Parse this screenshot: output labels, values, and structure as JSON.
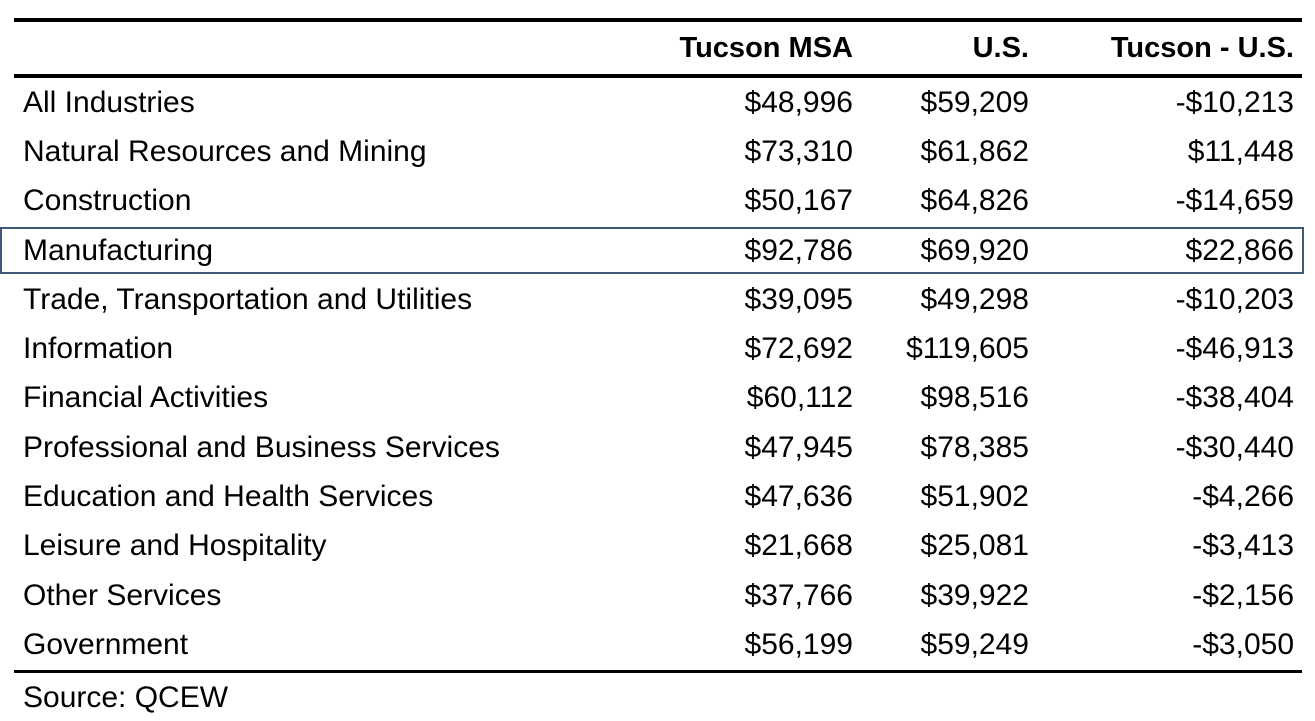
{
  "table": {
    "headers": {
      "label": "",
      "tucson": "Tucson MSA",
      "us": "U.S.",
      "diff": "Tucson - U.S."
    },
    "highlight_color": "#3d5a7a",
    "highlighted_row": "Manufacturing",
    "rows": [
      {
        "label": "All Industries",
        "tucson": "$48,996",
        "us": "$59,209",
        "diff": "-$10,213"
      },
      {
        "label": "Natural Resources and Mining",
        "tucson": "$73,310",
        "us": "$61,862",
        "diff": "$11,448"
      },
      {
        "label": "Construction",
        "tucson": "$50,167",
        "us": "$64,826",
        "diff": "-$14,659"
      },
      {
        "label": "Manufacturing",
        "tucson": "$92,786",
        "us": "$69,920",
        "diff": "$22,866"
      },
      {
        "label": "Trade, Transportation and Utilities",
        "tucson": "$39,095",
        "us": "$49,298",
        "diff": "-$10,203"
      },
      {
        "label": "Information",
        "tucson": "$72,692",
        "us": "$119,605",
        "diff": "-$46,913"
      },
      {
        "label": "Financial Activities",
        "tucson": "$60,112",
        "us": "$98,516",
        "diff": "-$38,404"
      },
      {
        "label": "Professional and Business Services",
        "tucson": "$47,945",
        "us": "$78,385",
        "diff": "-$30,440"
      },
      {
        "label": "Education and Health Services",
        "tucson": "$47,636",
        "us": "$51,902",
        "diff": "-$4,266"
      },
      {
        "label": "Leisure and Hospitality",
        "tucson": "$21,668",
        "us": "$25,081",
        "diff": "-$3,413"
      },
      {
        "label": "Other Services",
        "tucson": "$37,766",
        "us": "$39,922",
        "diff": "-$2,156"
      },
      {
        "label": "Government",
        "tucson": "$56,199",
        "us": "$59,249",
        "diff": "-$3,050"
      }
    ]
  },
  "source": "Source: QCEW"
}
